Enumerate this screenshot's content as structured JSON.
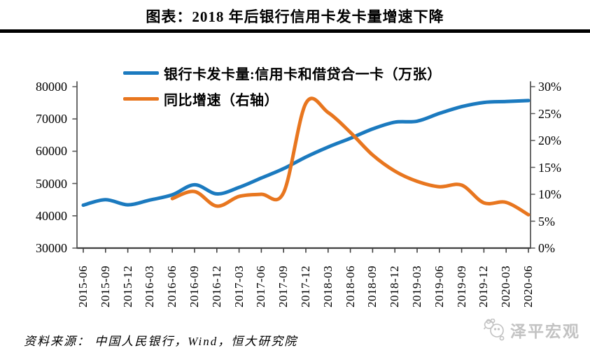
{
  "title": "图表：2018 年后银行信用卡发卡量增速下降",
  "legend": {
    "series1": "银行卡发卡量:信用卡和借贷合一卡（万张）",
    "series2": "同比增速（右轴）"
  },
  "source": {
    "text": "资料来源： 中国人民银行，Wind，恒大研究院"
  },
  "watermark": {
    "text": "泽平宏观",
    "icon": "mascot-icon"
  },
  "colors": {
    "series1_blue": "#1B7ABF",
    "series2_orange": "#E8761F",
    "axis_gray": "#595959",
    "watermark_gray": "#C2C2C2"
  },
  "chart_data": {
    "type": "line",
    "title": "图表：2018 年后银行信用卡发卡量增速下降",
    "categories": [
      "2015-06",
      "2015-09",
      "2015-12",
      "2016-03",
      "2016-06",
      "2016-09",
      "2016-12",
      "2017-03",
      "2017-06",
      "2017-09",
      "2017-12",
      "2018-03",
      "2018-06",
      "2018-09",
      "2018-12",
      "2019-03",
      "2019-06",
      "2019-09",
      "2019-12",
      "2020-03",
      "2020-06"
    ],
    "series": [
      {
        "name": "银行卡发卡量:信用卡和借贷合一卡（万张）",
        "axis": "left",
        "color": "#1B7ABF",
        "start_index": 0,
        "values": [
          43300,
          45000,
          43400,
          44900,
          46500,
          49600,
          46800,
          48800,
          51700,
          54600,
          58200,
          61300,
          64000,
          66900,
          69000,
          69300,
          71700,
          73800,
          75100,
          75400,
          75700
        ]
      },
      {
        "name": "同比增速（右轴）",
        "axis": "right",
        "color": "#E8761F",
        "start_index": 4,
        "values": [
          9.2,
          10.5,
          7.8,
          9.6,
          10.0,
          10.3,
          26.9,
          25.2,
          21.5,
          17.3,
          14.3,
          12.4,
          11.4,
          11.7,
          8.4,
          8.5,
          6.2
        ]
      }
    ],
    "left_axis": {
      "min": 30000,
      "max": 80000,
      "step": 10000,
      "tick_labels": [
        "80000",
        "70000",
        "60000",
        "50000",
        "40000",
        "30000"
      ]
    },
    "right_axis": {
      "min": 0,
      "max": 30,
      "step": 5,
      "tick_labels": [
        "30%",
        "25%",
        "20%",
        "15%",
        "10%",
        "5%",
        "0%"
      ]
    },
    "grid": false,
    "legend_position": "top-inside",
    "smoothed_lines": true
  }
}
